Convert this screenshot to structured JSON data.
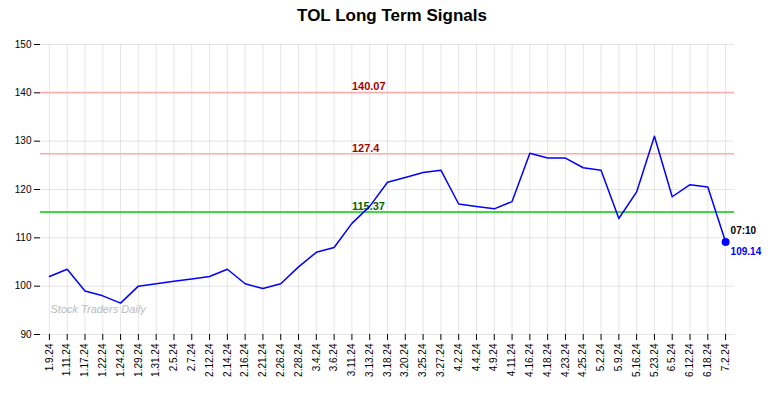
{
  "chart_data": {
    "type": "line",
    "title": "TOL Long Term Signals",
    "categories": [
      "1.9.24",
      "1.11.24",
      "1.17.24",
      "1.22.24",
      "1.24.24",
      "1.29.24",
      "1.31.24",
      "2.5.24",
      "2.7.24",
      "2.12.24",
      "2.14.24",
      "2.16.24",
      "2.21.24",
      "2.26.24",
      "2.28.24",
      "3.4.24",
      "3.6.24",
      "3.11.24",
      "3.13.24",
      "3.18.24",
      "3.20.24",
      "3.25.24",
      "3.27.24",
      "4.2.24",
      "4.4.24",
      "4.9.24",
      "4.11.24",
      "4.16.24",
      "4.18.24",
      "4.23.24",
      "4.25.24",
      "5.2.24",
      "5.9.24",
      "5.16.24",
      "5.23.24",
      "6.5.24",
      "6.12.24",
      "6.18.24",
      "7.2.24"
    ],
    "values": [
      102.0,
      103.5,
      99.0,
      98.0,
      96.5,
      100.0,
      100.5,
      101.0,
      101.5,
      102.0,
      103.5,
      100.5,
      99.5,
      100.5,
      104.0,
      107.0,
      108.0,
      113.0,
      116.5,
      121.5,
      122.5,
      123.5,
      124.0,
      117.0,
      116.5,
      116.0,
      117.5,
      127.5,
      126.5,
      126.5,
      124.5,
      124.0,
      114.0,
      119.5,
      131.0,
      118.5,
      121.0,
      120.5,
      109.14
    ],
    "color": "blue",
    "ylim": [
      90,
      150
    ],
    "yticks": [
      90,
      100,
      110,
      120,
      130,
      140,
      150
    ],
    "grid": true,
    "reference_lines": [
      {
        "value": 140.07,
        "color": "#ffaaaa",
        "label": "140.07",
        "label_color": "#aa0000"
      },
      {
        "value": 127.4,
        "color": "#ffaaaa",
        "label": "127.4",
        "label_color": "#aa0000"
      },
      {
        "value": 115.37,
        "color": "#00cc00",
        "label": "115.37",
        "label_color": "#006600"
      }
    ],
    "end_point": {
      "time_label": "07:10",
      "price_label": "109.14",
      "color": "blue"
    },
    "watermark": {
      "text": "Stock Traders Daily",
      "color": "#bbbbbb"
    }
  }
}
